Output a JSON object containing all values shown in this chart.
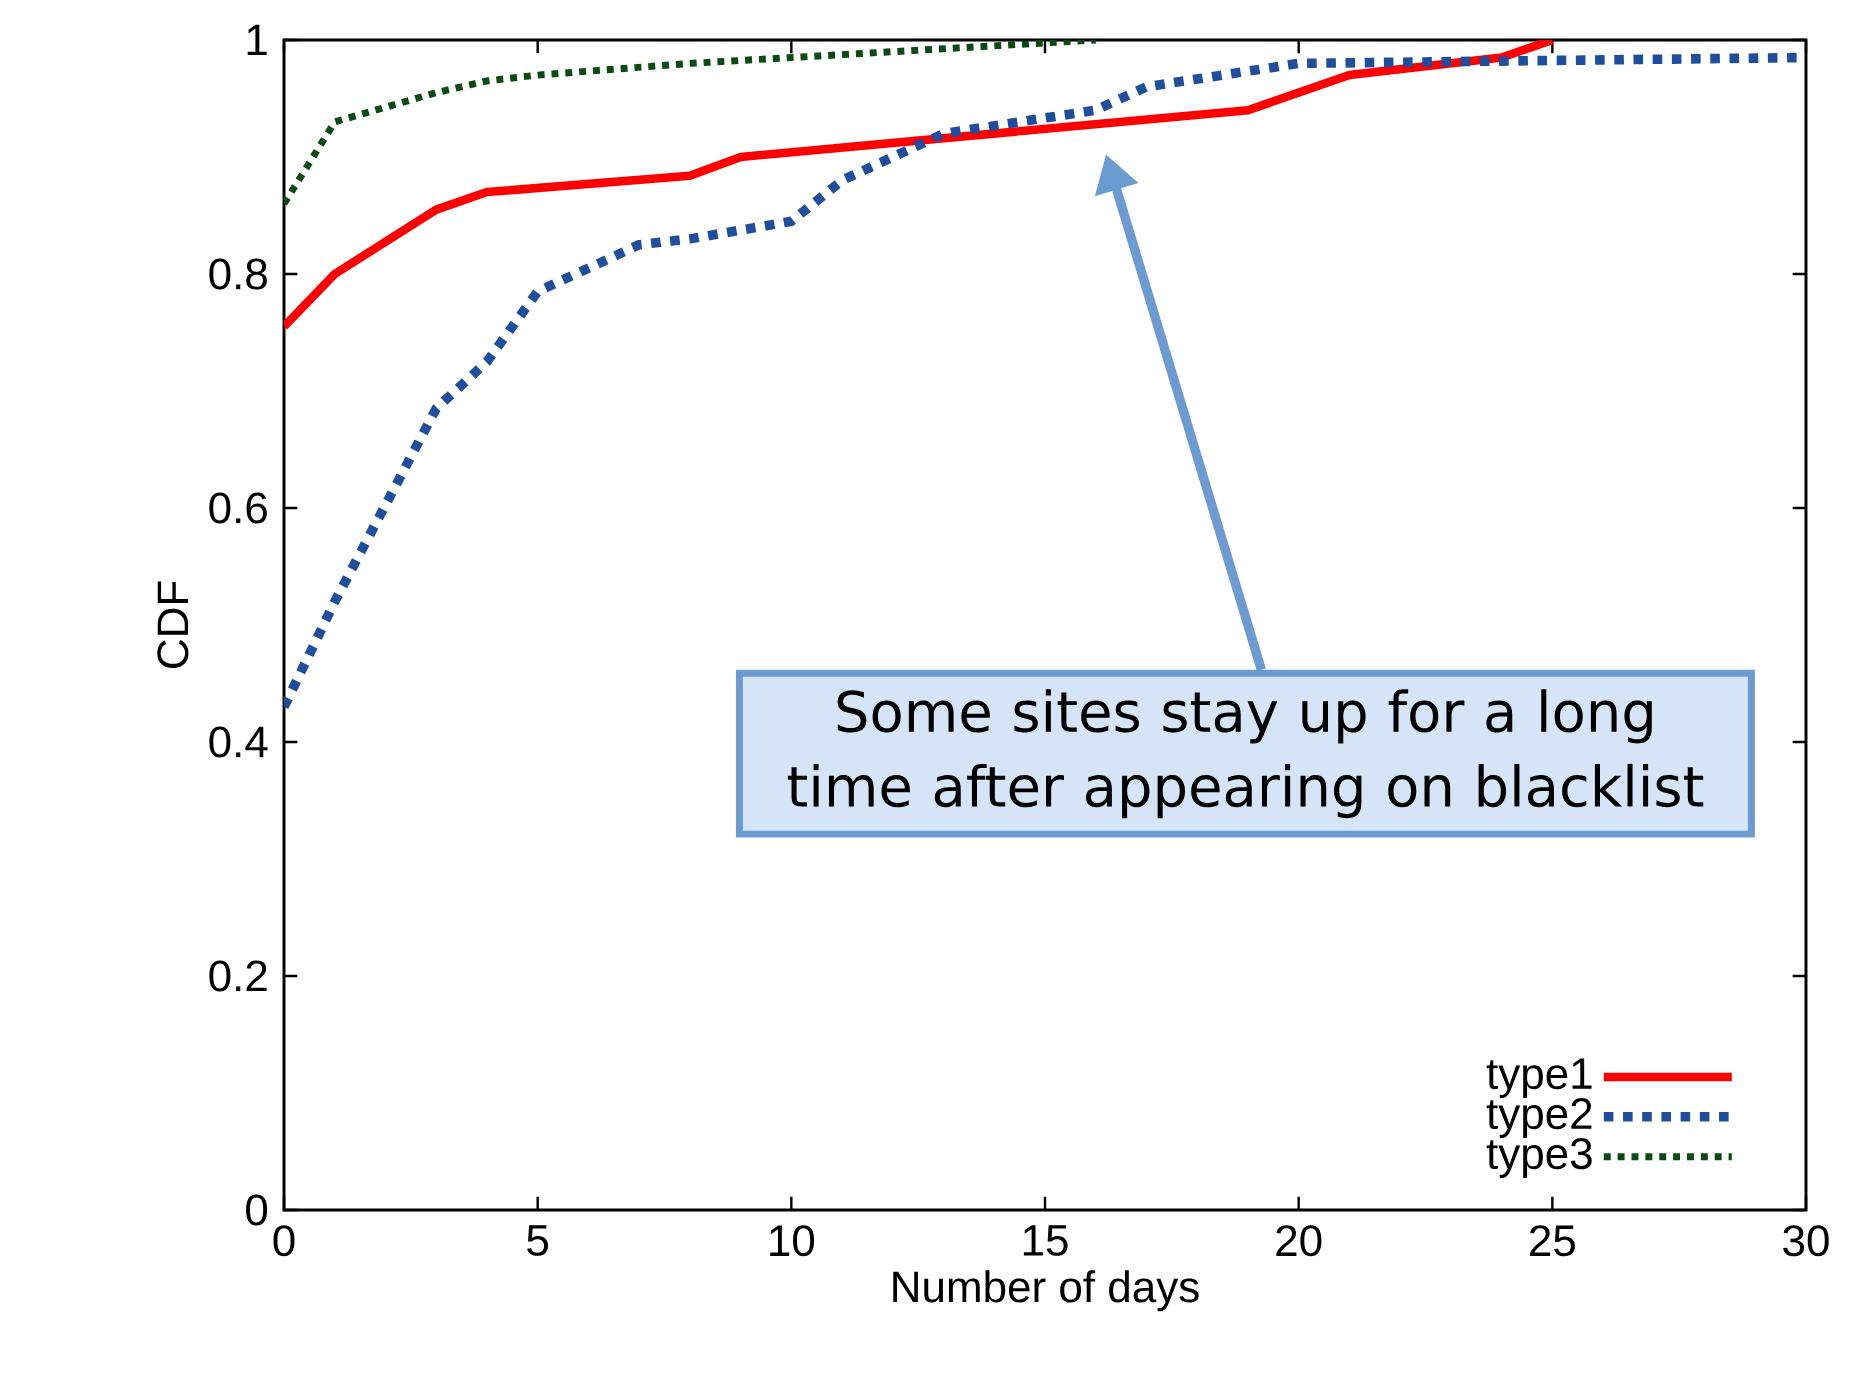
{
  "chart_data": {
    "type": "line",
    "xlabel": "Number of days",
    "ylabel": "CDF",
    "xlim": [
      0,
      30
    ],
    "ylim": [
      0,
      1
    ],
    "xticks": [
      0,
      5,
      10,
      15,
      20,
      25,
      30
    ],
    "yticks": [
      0,
      0.2,
      0.4,
      0.6,
      0.8,
      1
    ],
    "legend": "bottom right",
    "grid": false,
    "series": [
      {
        "name": "type1",
        "color": "#ff0000",
        "line_style": "solid",
        "x": [
          0,
          1,
          3,
          4,
          8,
          9,
          19,
          21,
          24,
          25
        ],
        "values": [
          0.755,
          0.8,
          0.855,
          0.87,
          0.884,
          0.9,
          0.94,
          0.97,
          0.985,
          1.0
        ]
      },
      {
        "name": "type2",
        "color": "#1f4e9e",
        "line_style": "dotted",
        "x": [
          0,
          1,
          3,
          4,
          5,
          7,
          8,
          10,
          11,
          13,
          16,
          17,
          20,
          30
        ],
        "values": [
          0.43,
          0.52,
          0.685,
          0.725,
          0.785,
          0.825,
          0.83,
          0.845,
          0.88,
          0.92,
          0.94,
          0.96,
          0.98,
          0.985
        ]
      },
      {
        "name": "type3",
        "color": "#0b4a12",
        "line_style": "dotted",
        "x": [
          0,
          1,
          3,
          4,
          5,
          8,
          12,
          16
        ],
        "values": [
          0.86,
          0.93,
          0.955,
          0.965,
          0.97,
          0.98,
          0.99,
          1.0
        ]
      }
    ],
    "annotations": [
      "Some sites stay up for a long time after appearing on blacklist"
    ]
  }
}
